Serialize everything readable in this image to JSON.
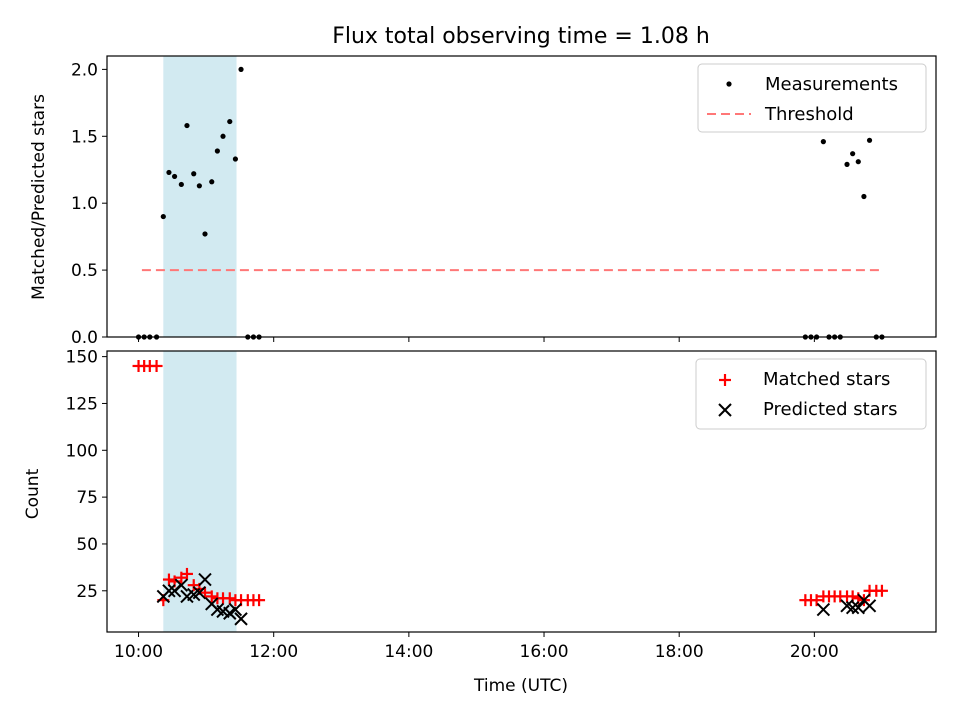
{
  "title": "Flux total observing time = 1.08 h",
  "chart_data": [
    {
      "type": "scatter",
      "panel": "top",
      "ylabel": "Matched/Predicted stars",
      "xlabel": "",
      "ylim": [
        0,
        2.1
      ],
      "xlim": [
        "09:32",
        "21:48"
      ],
      "yticks": [
        "0.0",
        "0.5",
        "1.0",
        "1.5",
        "2.0"
      ],
      "shaded_interval": [
        "10:22",
        "11:27"
      ],
      "shade_color": "#add8e6",
      "legend_position": "top-right",
      "series": [
        {
          "name": "Measurements",
          "marker": "dot",
          "color": "#000000",
          "points": [
            [
              "10:00",
              0
            ],
            [
              "10:05",
              0
            ],
            [
              "10:10",
              0
            ],
            [
              "10:16",
              0
            ],
            [
              "10:22",
              0.9
            ],
            [
              "10:27",
              1.23
            ],
            [
              "10:32",
              1.2
            ],
            [
              "10:38",
              1.14
            ],
            [
              "10:43",
              1.58
            ],
            [
              "10:49",
              1.22
            ],
            [
              "10:54",
              1.13
            ],
            [
              "10:59",
              0.77
            ],
            [
              "11:05",
              1.16
            ],
            [
              "11:10",
              1.39
            ],
            [
              "11:15",
              1.5
            ],
            [
              "11:21",
              1.61
            ],
            [
              "11:26",
              1.33
            ],
            [
              "11:31",
              2.0
            ],
            [
              "11:37",
              0
            ],
            [
              "11:42",
              0
            ],
            [
              "11:47",
              0
            ],
            [
              "19:52",
              0
            ],
            [
              "19:57",
              0
            ],
            [
              "20:02",
              0
            ],
            [
              "20:08",
              1.46
            ],
            [
              "20:13",
              0
            ],
            [
              "20:18",
              0
            ],
            [
              "20:23",
              0
            ],
            [
              "20:29",
              1.29
            ],
            [
              "20:34",
              1.37
            ],
            [
              "20:39",
              1.31
            ],
            [
              "20:44",
              1.05
            ],
            [
              "20:49",
              1.47
            ],
            [
              "20:55",
              0
            ],
            [
              "21:00",
              0
            ]
          ]
        },
        {
          "name": "Threshold",
          "marker": "dashed-line",
          "color": "#ff7777",
          "points": [
            [
              "10:03",
              0.5
            ],
            [
              "20:59",
              0.5
            ]
          ]
        }
      ]
    },
    {
      "type": "scatter",
      "panel": "bottom",
      "ylabel": "Count",
      "xlabel": "Time (UTC)",
      "ylim": [
        3,
        153
      ],
      "xlim": [
        "09:32",
        "21:48"
      ],
      "yticks": [
        "25",
        "50",
        "75",
        "100",
        "125",
        "150"
      ],
      "xticks": [
        "10:00",
        "12:00",
        "14:00",
        "16:00",
        "18:00",
        "20:00"
      ],
      "shaded_interval": [
        "10:22",
        "11:27"
      ],
      "shade_color": "#add8e6",
      "legend_position": "top-right",
      "series": [
        {
          "name": "Matched stars",
          "marker": "plus",
          "color": "#ff0000",
          "points": [
            [
              "10:00",
              145
            ],
            [
              "10:05",
              145
            ],
            [
              "10:10",
              145
            ],
            [
              "10:16",
              145
            ],
            [
              "10:22",
              20
            ],
            [
              "10:27",
              31
            ],
            [
              "10:32",
              30
            ],
            [
              "10:38",
              32
            ],
            [
              "10:43",
              34
            ],
            [
              "10:49",
              28
            ],
            [
              "10:54",
              26
            ],
            [
              "10:59",
              24
            ],
            [
              "11:05",
              22
            ],
            [
              "11:10",
              21
            ],
            [
              "11:15",
              21
            ],
            [
              "11:21",
              21
            ],
            [
              "11:26",
              20
            ],
            [
              "11:31",
              20
            ],
            [
              "11:37",
              20
            ],
            [
              "11:42",
              20
            ],
            [
              "11:47",
              20
            ],
            [
              "19:52",
              20
            ],
            [
              "19:57",
              20
            ],
            [
              "20:02",
              20
            ],
            [
              "20:08",
              22
            ],
            [
              "20:13",
              22
            ],
            [
              "20:18",
              22
            ],
            [
              "20:23",
              22
            ],
            [
              "20:29",
              22
            ],
            [
              "20:34",
              22
            ],
            [
              "20:39",
              21
            ],
            [
              "20:44",
              20
            ],
            [
              "20:49",
              25
            ],
            [
              "20:55",
              25
            ],
            [
              "21:00",
              25
            ]
          ]
        },
        {
          "name": "Predicted stars",
          "marker": "x",
          "color": "#000000",
          "points": [
            [
              "10:22",
              22
            ],
            [
              "10:27",
              25
            ],
            [
              "10:32",
              25
            ],
            [
              "10:38",
              28
            ],
            [
              "10:43",
              22
            ],
            [
              "10:49",
              23
            ],
            [
              "10:54",
              24
            ],
            [
              "10:59",
              31
            ],
            [
              "11:05",
              18
            ],
            [
              "11:10",
              15
            ],
            [
              "11:15",
              14
            ],
            [
              "11:21",
              13
            ],
            [
              "11:26",
              15
            ],
            [
              "11:31",
              10
            ],
            [
              "20:08",
              15
            ],
            [
              "20:29",
              17
            ],
            [
              "20:34",
              16
            ],
            [
              "20:39",
              16
            ],
            [
              "20:44",
              20
            ],
            [
              "20:49",
              17
            ]
          ]
        }
      ]
    }
  ]
}
